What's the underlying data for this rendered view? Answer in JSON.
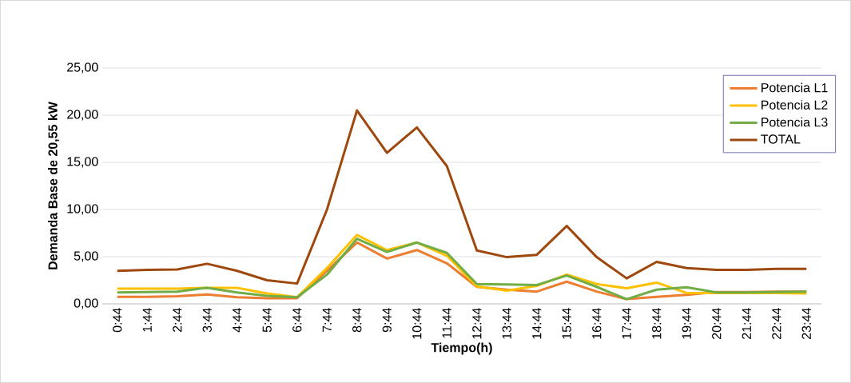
{
  "chart_data": {
    "type": "line",
    "xlabel": "Tiempo(h)",
    "ylabel": "Demanda Base de 20,55  kW",
    "categories": [
      "0:44",
      "1:44",
      "2:44",
      "3:44",
      "4:44",
      "5:44",
      "6:44",
      "7:44",
      "8:44",
      "9:44",
      "10:44",
      "11:44",
      "12:44",
      "13:44",
      "14:44",
      "15:44",
      "16:44",
      "17:44",
      "18:44",
      "19:44",
      "20:44",
      "21:44",
      "22:44",
      "23:44"
    ],
    "series": [
      {
        "name": "Potencia L1",
        "color": "#ed7d31",
        "values": [
          0.75,
          0.75,
          0.8,
          1.0,
          0.7,
          0.6,
          0.6,
          3.5,
          6.5,
          4.8,
          5.7,
          4.3,
          1.8,
          1.5,
          1.3,
          2.35,
          1.3,
          0.5,
          0.75,
          0.95,
          1.25,
          1.25,
          1.3,
          1.3
        ]
      },
      {
        "name": "Potencia L2",
        "color": "#ffc000",
        "values": [
          1.6,
          1.6,
          1.6,
          1.7,
          1.7,
          1.1,
          0.7,
          3.8,
          7.3,
          5.7,
          6.5,
          5.1,
          1.85,
          1.4,
          1.9,
          3.1,
          2.1,
          1.65,
          2.25,
          1.15,
          1.15,
          1.15,
          1.15,
          1.1
        ]
      },
      {
        "name": "Potencia L3",
        "color": "#70ad47",
        "values": [
          1.2,
          1.25,
          1.3,
          1.7,
          1.2,
          0.85,
          0.7,
          3.1,
          6.9,
          5.5,
          6.5,
          5.4,
          2.1,
          2.05,
          2.0,
          3.0,
          1.8,
          0.5,
          1.5,
          1.75,
          1.2,
          1.2,
          1.25,
          1.3
        ]
      },
      {
        "name": "TOTAL",
        "color": "#9e480e",
        "values": [
          3.5,
          3.6,
          3.65,
          4.25,
          3.5,
          2.5,
          2.15,
          10.0,
          20.5,
          16.0,
          18.7,
          14.6,
          5.65,
          4.95,
          5.2,
          8.25,
          4.95,
          2.7,
          4.45,
          3.8,
          3.6,
          3.6,
          3.7,
          3.7
        ]
      }
    ],
    "ylim": [
      0,
      25
    ],
    "yticks": [
      {
        "value": 0,
        "label": "0,00"
      },
      {
        "value": 5,
        "label": "5,00"
      },
      {
        "value": 10,
        "label": "10,00"
      },
      {
        "value": 15,
        "label": "15,00"
      },
      {
        "value": 20,
        "label": "20,00"
      },
      {
        "value": 25,
        "label": "25,00"
      }
    ],
    "grid": "y",
    "legend": "top right",
    "marker": "none",
    "line_style": "solid"
  }
}
